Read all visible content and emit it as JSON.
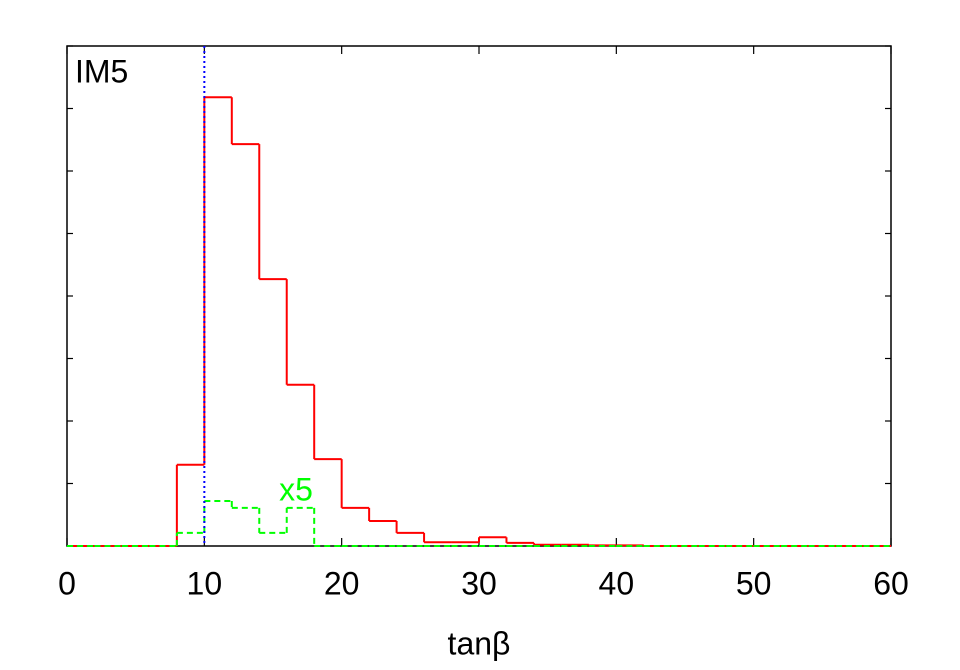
{
  "chart_data": {
    "type": "histogram",
    "label": "IM5",
    "xlabel": "tanβ",
    "annotation": "x5",
    "bins": [
      0,
      2,
      4,
      6,
      8,
      10,
      12,
      14,
      16,
      18,
      20,
      22,
      24,
      26,
      28,
      30,
      32,
      34,
      36,
      38,
      40,
      42,
      44,
      46,
      48,
      50,
      52,
      54,
      56,
      58,
      60
    ],
    "series": [
      {
        "name": "IM5",
        "color": "#ff0000",
        "dash": "solid",
        "values": [
          0,
          0,
          0,
          0,
          1.3,
          7.18,
          6.43,
          4.27,
          2.58,
          1.39,
          0.61,
          0.4,
          0.21,
          0.06,
          0.06,
          0.14,
          0.05,
          0.02,
          0.02,
          0.01,
          0.01,
          0,
          0,
          0,
          0,
          0,
          0,
          0,
          0,
          0
        ]
      },
      {
        "name": "x5",
        "color": "#00ff00",
        "dash": "dashed",
        "values": [
          0,
          0,
          0,
          0,
          0.21,
          0.72,
          0.61,
          0.21,
          0.61,
          0,
          0,
          0,
          0,
          0,
          0,
          0,
          0,
          0,
          0,
          0,
          0,
          0,
          0,
          0,
          0,
          0,
          0,
          0,
          0,
          0
        ]
      }
    ],
    "vline": {
      "x": 10,
      "color": "#0000ff"
    },
    "xlim": [
      0,
      60
    ],
    "xticks": [
      0,
      10,
      20,
      30,
      40,
      50,
      60
    ],
    "ylim": [
      0,
      8
    ],
    "yticks": [
      0,
      1,
      2,
      3,
      4,
      5,
      6,
      7,
      8
    ]
  }
}
